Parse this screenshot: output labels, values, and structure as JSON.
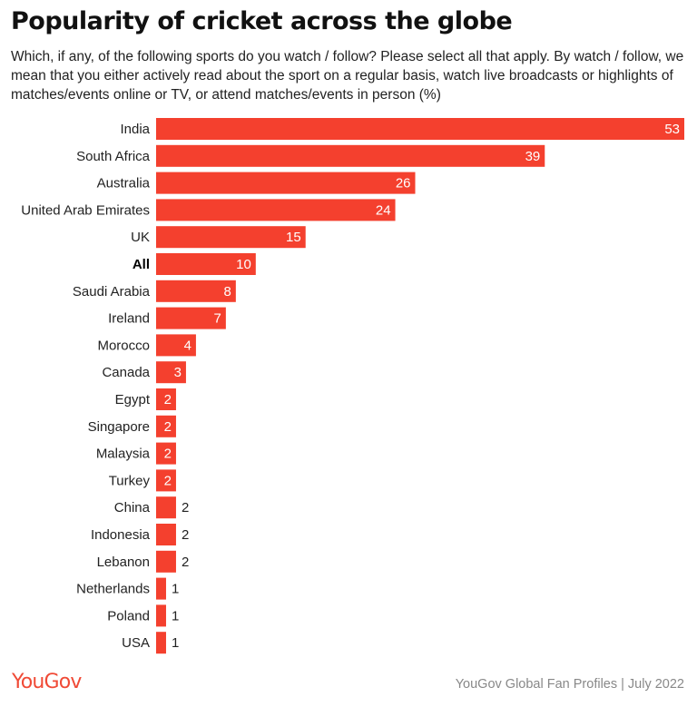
{
  "title": "Popularity of cricket across the globe",
  "subtitle": "Which, if any, of the following sports do you watch / follow? Please select all that apply. By watch / follow, we mean that you either actively read about the sport on a regular basis, watch live broadcasts or highlights of matches/events online or TV, or attend matches/events in person (%)",
  "logo": "YouGov",
  "source": "YouGov Global Fan Profiles | July 2022",
  "colors": {
    "bar": "#f4402e",
    "label_inside": "#ffffff",
    "label_outside": "#222222"
  },
  "chart_data": {
    "type": "bar",
    "orientation": "horizontal",
    "categories": [
      "India",
      "South Africa",
      "Australia",
      "United Arab Emirates",
      "UK",
      "All",
      "Saudi Arabia",
      "Ireland",
      "Morocco",
      "Canada",
      "Egypt",
      "Singapore",
      "Malaysia",
      "Turkey",
      "China",
      "Indonesia",
      "Lebanon",
      "Netherlands",
      "Poland",
      "USA"
    ],
    "values": [
      53,
      39,
      26,
      24,
      15,
      10,
      8,
      7,
      4,
      3,
      2,
      2,
      2,
      2,
      2,
      2,
      2,
      1,
      1,
      1
    ],
    "highlighted_category": "All",
    "xlim": [
      0,
      53
    ],
    "grid": false,
    "legend": "none"
  }
}
